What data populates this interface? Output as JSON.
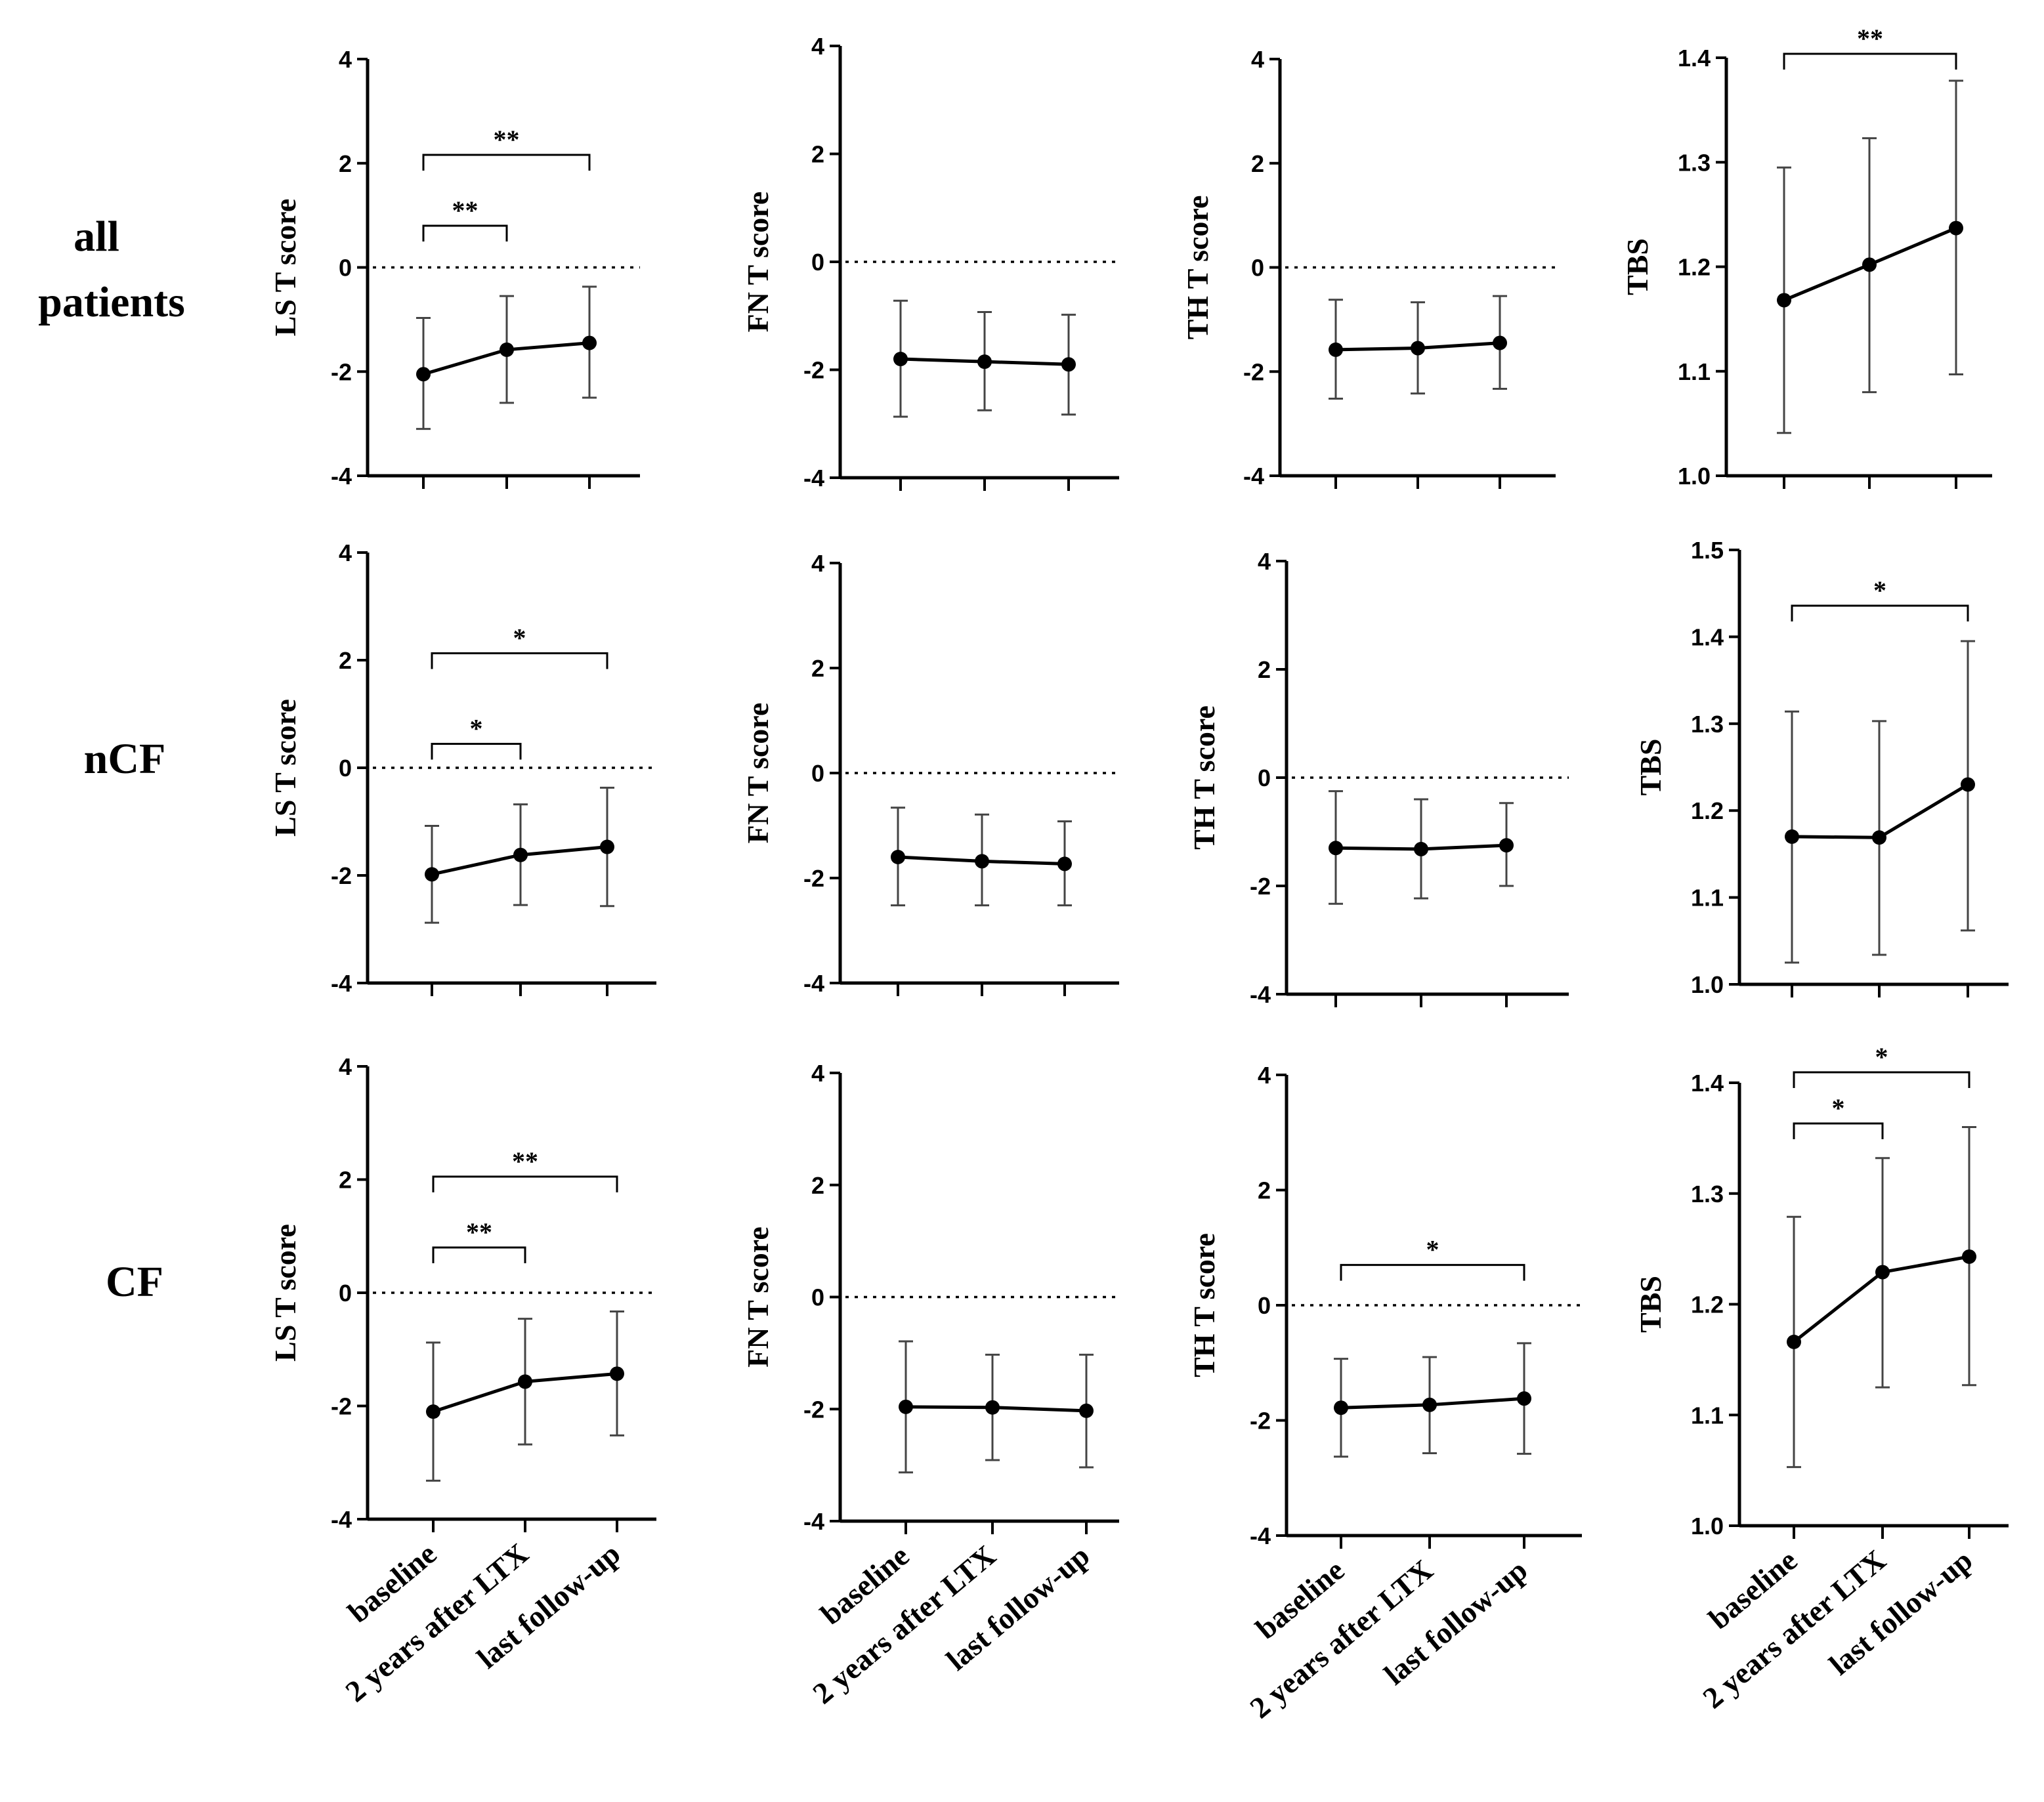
{
  "row_labels": [
    "all patients",
    "nCF",
    "CF"
  ],
  "categories": [
    "baseline",
    "2 years after LTX",
    "last follow-up"
  ],
  "chart_data": [
    {
      "id": "all-ls",
      "row": "all patients",
      "type": "line",
      "ylabel": "LS T score",
      "ylim": [
        -4,
        4
      ],
      "yticks": [
        -4,
        -2,
        0,
        2,
        4
      ],
      "reference_line": 0,
      "series": [
        {
          "name": "LS T score",
          "mean": [
            -2.05,
            -1.58,
            -1.45
          ],
          "error_low": [
            -3.1,
            -2.6,
            -2.5
          ],
          "error_high": [
            -0.97,
            -0.55,
            -0.37
          ]
        }
      ],
      "annotations": [
        {
          "from": "baseline",
          "to": "2 years after LTX",
          "text": "**"
        },
        {
          "from": "baseline",
          "to": "last follow-up",
          "text": "**"
        }
      ]
    },
    {
      "id": "all-fn",
      "row": "all patients",
      "type": "line",
      "ylabel": "FN T score",
      "ylim": [
        -4,
        4
      ],
      "yticks": [
        -4,
        -2,
        0,
        2,
        4
      ],
      "reference_line": 0,
      "series": [
        {
          "name": "FN T score",
          "mean": [
            -1.8,
            -1.85,
            -1.9
          ],
          "error_low": [
            -2.87,
            -2.75,
            -2.83
          ],
          "error_high": [
            -0.72,
            -0.93,
            -0.98
          ]
        }
      ],
      "annotations": []
    },
    {
      "id": "all-th",
      "row": "all patients",
      "type": "line",
      "ylabel": "TH T score",
      "ylim": [
        -4,
        4
      ],
      "yticks": [
        -4,
        -2,
        0,
        2,
        4
      ],
      "reference_line": 0,
      "series": [
        {
          "name": "TH T score",
          "mean": [
            -1.58,
            -1.55,
            -1.45
          ],
          "error_low": [
            -2.52,
            -2.42,
            -2.33
          ],
          "error_high": [
            -0.62,
            -0.67,
            -0.55
          ]
        }
      ],
      "annotations": []
    },
    {
      "id": "all-tbs",
      "row": "all patients",
      "type": "line",
      "ylabel": "TBS",
      "ylim": [
        1.0,
        1.4
      ],
      "yticks": [
        1.0,
        1.1,
        1.2,
        1.3,
        1.4
      ],
      "reference_line": null,
      "series": [
        {
          "name": "TBS",
          "mean": [
            1.168,
            1.202,
            1.237
          ],
          "error_low": [
            1.041,
            1.08,
            1.097
          ],
          "error_high": [
            1.295,
            1.323,
            1.378
          ]
        }
      ],
      "annotations": [
        {
          "from": "baseline",
          "to": "last follow-up",
          "text": "**"
        }
      ]
    },
    {
      "id": "ncf-ls",
      "row": "nCF",
      "type": "line",
      "ylabel": "LS T score",
      "ylim": [
        -4,
        4
      ],
      "yticks": [
        -4,
        -2,
        0,
        2,
        4
      ],
      "reference_line": 0,
      "series": [
        {
          "name": "LS T score",
          "mean": [
            -1.98,
            -1.62,
            -1.47
          ],
          "error_low": [
            -2.88,
            -2.55,
            -2.57
          ],
          "error_high": [
            -1.08,
            -0.68,
            -0.37
          ]
        }
      ],
      "annotations": [
        {
          "from": "baseline",
          "to": "2 years after LTX",
          "text": "*"
        },
        {
          "from": "baseline",
          "to": "last follow-up",
          "text": "*"
        }
      ]
    },
    {
      "id": "ncf-fn",
      "row": "nCF",
      "type": "line",
      "ylabel": "FN T score",
      "ylim": [
        -4,
        4
      ],
      "yticks": [
        -4,
        -2,
        0,
        2,
        4
      ],
      "reference_line": 0,
      "series": [
        {
          "name": "FN T score",
          "mean": [
            -1.6,
            -1.68,
            -1.73
          ],
          "error_low": [
            -2.52,
            -2.52,
            -2.52
          ],
          "error_high": [
            -0.66,
            -0.79,
            -0.92
          ]
        }
      ],
      "annotations": []
    },
    {
      "id": "ncf-th",
      "row": "nCF",
      "type": "line",
      "ylabel": "TH T score",
      "ylim": [
        -4,
        4
      ],
      "yticks": [
        -4,
        -2,
        0,
        2,
        4
      ],
      "reference_line": 0,
      "series": [
        {
          "name": "TH T score",
          "mean": [
            -1.3,
            -1.32,
            -1.25
          ],
          "error_low": [
            -2.33,
            -2.23,
            -2.0
          ],
          "error_high": [
            -0.25,
            -0.4,
            -0.47
          ]
        }
      ],
      "annotations": []
    },
    {
      "id": "ncf-tbs",
      "row": "nCF",
      "type": "line",
      "ylabel": "TBS",
      "ylim": [
        1.0,
        1.5
      ],
      "yticks": [
        1.0,
        1.1,
        1.2,
        1.3,
        1.4,
        1.5
      ],
      "reference_line": null,
      "series": [
        {
          "name": "TBS",
          "mean": [
            1.17,
            1.169,
            1.23
          ],
          "error_low": [
            1.025,
            1.034,
            1.062
          ],
          "error_high": [
            1.314,
            1.303,
            1.395
          ]
        }
      ],
      "annotations": [
        {
          "from": "baseline",
          "to": "last follow-up",
          "text": "*"
        }
      ]
    },
    {
      "id": "cf-ls",
      "row": "CF",
      "type": "line",
      "ylabel": "LS T score",
      "ylim": [
        -4,
        4
      ],
      "yticks": [
        -4,
        -2,
        0,
        2,
        4
      ],
      "reference_line": 0,
      "series": [
        {
          "name": "LS T score",
          "mean": [
            -2.1,
            -1.57,
            -1.43
          ],
          "error_low": [
            -3.32,
            -2.68,
            -2.52
          ],
          "error_high": [
            -0.88,
            -0.46,
            -0.33
          ]
        }
      ],
      "annotations": [
        {
          "from": "baseline",
          "to": "2 years after LTX",
          "text": "**"
        },
        {
          "from": "baseline",
          "to": "last follow-up",
          "text": "**"
        }
      ]
    },
    {
      "id": "cf-fn",
      "row": "CF",
      "type": "line",
      "ylabel": "FN T score",
      "ylim": [
        -4,
        4
      ],
      "yticks": [
        -4,
        -2,
        0,
        2,
        4
      ],
      "reference_line": 0,
      "series": [
        {
          "name": "FN T score",
          "mean": [
            -1.96,
            -1.97,
            -2.03
          ],
          "error_low": [
            -3.13,
            -2.91,
            -3.04
          ],
          "error_high": [
            -0.79,
            -1.03,
            -1.03
          ]
        }
      ],
      "annotations": []
    },
    {
      "id": "cf-th",
      "row": "CF",
      "type": "line",
      "ylabel": "TH T score",
      "ylim": [
        -4,
        4
      ],
      "yticks": [
        -4,
        -2,
        0,
        2,
        4
      ],
      "reference_line": 0,
      "series": [
        {
          "name": "TH T score",
          "mean": [
            -1.78,
            -1.73,
            -1.62
          ],
          "error_low": [
            -2.63,
            -2.57,
            -2.58
          ],
          "error_high": [
            -0.93,
            -0.9,
            -0.66
          ]
        }
      ],
      "annotations": [
        {
          "from": "baseline",
          "to": "last follow-up",
          "text": "*"
        }
      ]
    },
    {
      "id": "cf-tbs",
      "row": "CF",
      "type": "line",
      "ylabel": "TBS",
      "ylim": [
        1.0,
        1.4
      ],
      "yticks": [
        1.0,
        1.1,
        1.2,
        1.3,
        1.4
      ],
      "reference_line": null,
      "series": [
        {
          "name": "TBS",
          "mean": [
            1.166,
            1.229,
            1.243
          ],
          "error_low": [
            1.053,
            1.125,
            1.127
          ],
          "error_high": [
            1.279,
            1.332,
            1.36
          ]
        }
      ],
      "annotations": [
        {
          "from": "baseline",
          "to": "2 years after LTX",
          "text": "*"
        },
        {
          "from": "baseline",
          "to": "last follow-up",
          "text": "*"
        }
      ]
    }
  ]
}
